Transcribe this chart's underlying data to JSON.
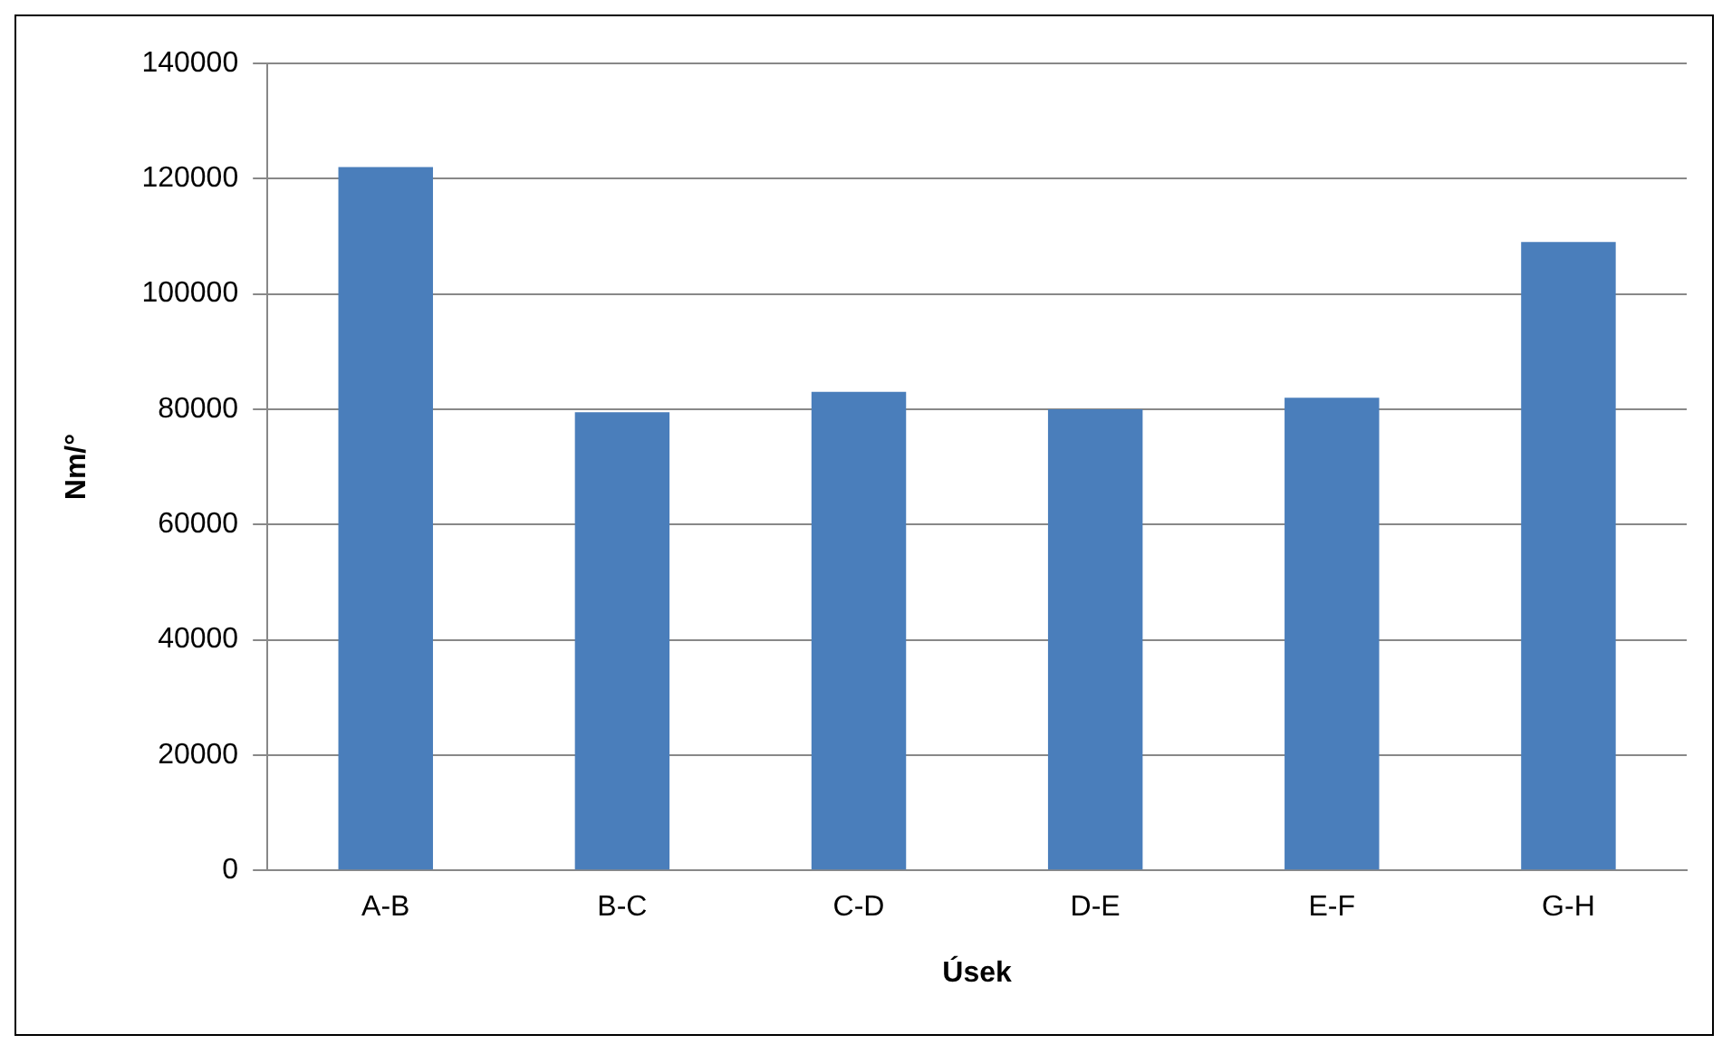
{
  "chart_data": {
    "type": "bar",
    "xlabel": "Úsek",
    "ylabel": "Nm/°",
    "categories": [
      "A-B",
      "B-C",
      "C-D",
      "D-E",
      "E-F",
      "G-H"
    ],
    "values": [
      122000,
      79500,
      83000,
      80000,
      82000,
      109000
    ],
    "color": "#4a7ebb",
    "ylim": [
      0,
      140000
    ],
    "yticks": [
      0,
      20000,
      40000,
      60000,
      80000,
      100000,
      120000,
      140000
    ],
    "grid": "y",
    "legend": false
  }
}
